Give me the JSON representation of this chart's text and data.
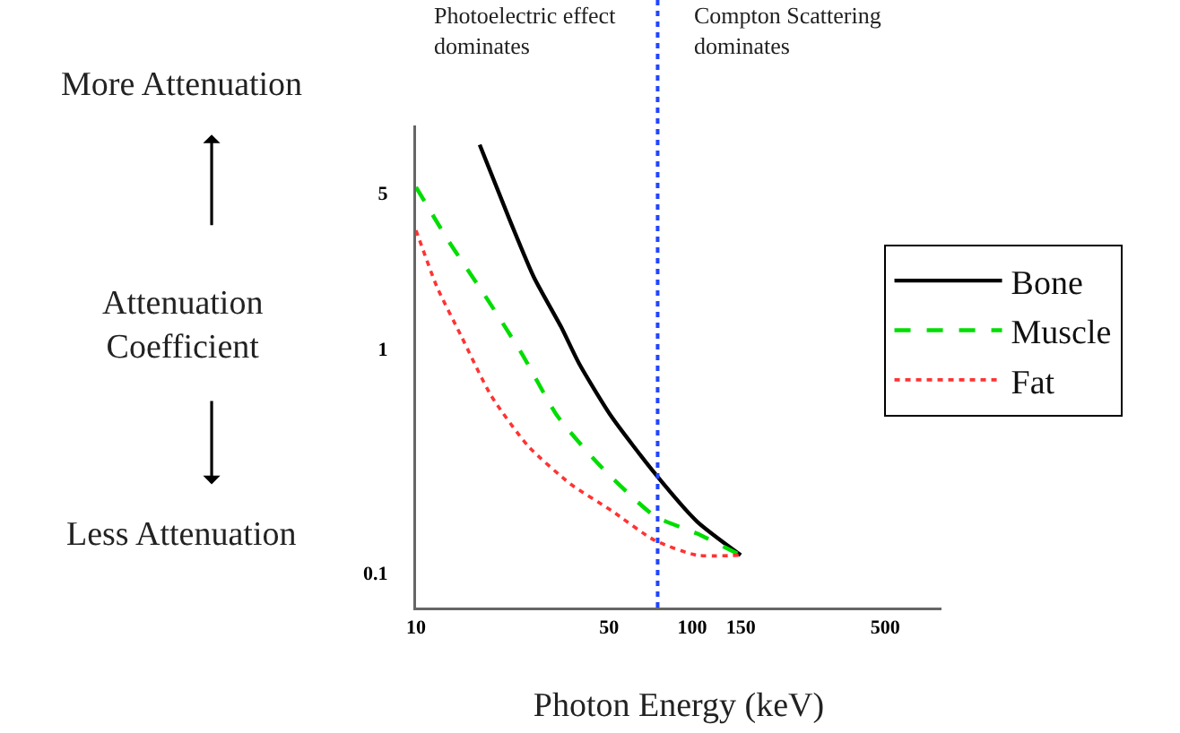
{
  "chart_data": {
    "type": "line",
    "xlabel": "Photon Energy (keV)",
    "ylabel": "Attenuation\nCoefficient",
    "annotations": [
      "More Attenuation",
      "Less Attenuation",
      "Photoelectric effect\ndominates",
      "Compton Scattering\ndominates"
    ],
    "series": [
      {
        "name": "Bone",
        "color": "#000000",
        "line_style": "solid",
        "x": [
          17,
          21.8,
          26.7,
          33.5,
          39,
          51,
          73,
          104,
          150
        ],
        "values": [
          8.2,
          3.8,
          2.1,
          1.26,
          0.86,
          0.5,
          0.28,
          0.17,
          0.12
        ]
      },
      {
        "name": "Muscle",
        "color": "#00dd00",
        "line_style": "dashed",
        "x": [
          10,
          13.1,
          17.8,
          24.1,
          32.6,
          46.6,
          73,
          104,
          150
        ],
        "values": [
          5.3,
          3.05,
          1.73,
          0.96,
          0.5,
          0.3,
          0.18,
          0.15,
          0.12
        ]
      },
      {
        "name": "Fat",
        "color": "#ff3333",
        "line_style": "dotted",
        "x": [
          10,
          11.9,
          14.6,
          18.7,
          25.4,
          36.2,
          51,
          73,
          104,
          150
        ],
        "values": [
          3.4,
          1.9,
          1.14,
          0.62,
          0.37,
          0.25,
          0.19,
          0.14,
          0.12,
          0.12
        ]
      }
    ],
    "log": "xy",
    "xlim": [
      10,
      800
    ],
    "ylim": [
      0.07,
      10
    ],
    "xticks": [
      10,
      50,
      100,
      150,
      500
    ],
    "yticks": [
      0.1,
      1,
      5
    ],
    "grid": false,
    "legend": "right",
    "marker": "none",
    "ref_lines": [
      {
        "axis": "x",
        "value": 75,
        "color": "#2244ff",
        "line_style": "dotted"
      }
    ]
  }
}
